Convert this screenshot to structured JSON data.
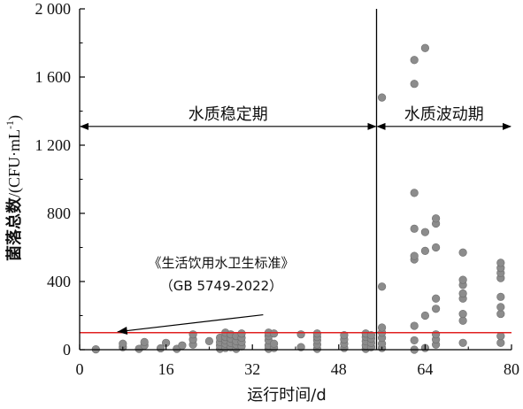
{
  "chart_data": {
    "type": "scatter",
    "xlabel": "运行时间/d",
    "ylabel": {
      "cjk": "菌落总数",
      "unit": "/(CFU·mL",
      "exp": "-1",
      "close": ")"
    },
    "xlim": [
      0,
      80
    ],
    "ylim": [
      0,
      2000
    ],
    "xticks": [
      0,
      16,
      32,
      48,
      64,
      80
    ],
    "yticks": [
      0,
      400,
      800,
      1200,
      1600,
      2000
    ],
    "xtick_labels": [
      "0",
      "16",
      "32",
      "48",
      "64",
      "80"
    ],
    "ytick_labels": [
      "0",
      "400",
      "800",
      "1 200",
      "1 600",
      "2 000"
    ],
    "grid": false,
    "standard_line": {
      "y": 100,
      "color": "#e02020"
    },
    "divider_x": 55,
    "regions": [
      {
        "label": "水质稳定期",
        "x_from": 0,
        "x_to": 55,
        "y": 1310
      },
      {
        "label": "水质波动期",
        "x_from": 55,
        "x_to": 80,
        "y": 1310
      }
    ],
    "annotation": {
      "line1": "《生活饮用水卫生标准》",
      "line2": "（GB 5749-2022）",
      "arrow_from": [
        12,
        210
      ],
      "arrow_to": [
        7,
        105
      ]
    },
    "point_color": "#8c8c8c",
    "points": [
      [
        3,
        2
      ],
      [
        8,
        15
      ],
      [
        8,
        35
      ],
      [
        11,
        5
      ],
      [
        12,
        25
      ],
      [
        12,
        45
      ],
      [
        15,
        8
      ],
      [
        16,
        40
      ],
      [
        18,
        5
      ],
      [
        19,
        25
      ],
      [
        21,
        30
      ],
      [
        21,
        60
      ],
      [
        21,
        90
      ],
      [
        24,
        50
      ],
      [
        26,
        5
      ],
      [
        26,
        25
      ],
      [
        26,
        45
      ],
      [
        26,
        70
      ],
      [
        27,
        10
      ],
      [
        27,
        35
      ],
      [
        27,
        55
      ],
      [
        27,
        75
      ],
      [
        27,
        100
      ],
      [
        28,
        15
      ],
      [
        28,
        40
      ],
      [
        28,
        65
      ],
      [
        28,
        90
      ],
      [
        29,
        5
      ],
      [
        29,
        30
      ],
      [
        29,
        50
      ],
      [
        29,
        80
      ],
      [
        30,
        20
      ],
      [
        30,
        45
      ],
      [
        30,
        70
      ],
      [
        30,
        95
      ],
      [
        35,
        5
      ],
      [
        35,
        25
      ],
      [
        35,
        55
      ],
      [
        35,
        80
      ],
      [
        35,
        100
      ],
      [
        36,
        10
      ],
      [
        36,
        35
      ],
      [
        36,
        95
      ],
      [
        41,
        15
      ],
      [
        41,
        90
      ],
      [
        44,
        5
      ],
      [
        44,
        30
      ],
      [
        44,
        55
      ],
      [
        44,
        75
      ],
      [
        44,
        95
      ],
      [
        49,
        10
      ],
      [
        49,
        35
      ],
      [
        49,
        60
      ],
      [
        49,
        85
      ],
      [
        53,
        5
      ],
      [
        53,
        25
      ],
      [
        53,
        50
      ],
      [
        53,
        75
      ],
      [
        53,
        95
      ],
      [
        54,
        15
      ],
      [
        54,
        40
      ],
      [
        54,
        65
      ],
      [
        54,
        85
      ],
      [
        56,
        10
      ],
      [
        56,
        35
      ],
      [
        56,
        70
      ],
      [
        56,
        100
      ],
      [
        56,
        130
      ],
      [
        56,
        370
      ],
      [
        56,
        1480
      ],
      [
        62,
        0
      ],
      [
        62,
        55
      ],
      [
        62,
        140
      ],
      [
        62,
        530
      ],
      [
        62,
        550
      ],
      [
        62,
        710
      ],
      [
        62,
        920
      ],
      [
        62,
        1560
      ],
      [
        62,
        1700
      ],
      [
        64,
        10
      ],
      [
        64,
        200
      ],
      [
        64,
        580
      ],
      [
        64,
        690
      ],
      [
        64,
        1770
      ],
      [
        66,
        30
      ],
      [
        66,
        60
      ],
      [
        66,
        90
      ],
      [
        66,
        240
      ],
      [
        66,
        300
      ],
      [
        66,
        600
      ],
      [
        66,
        740
      ],
      [
        66,
        770
      ],
      [
        71,
        40
      ],
      [
        71,
        170
      ],
      [
        71,
        210
      ],
      [
        71,
        300
      ],
      [
        71,
        330
      ],
      [
        71,
        380
      ],
      [
        71,
        410
      ],
      [
        71,
        570
      ],
      [
        78,
        40
      ],
      [
        78,
        80
      ],
      [
        78,
        210
      ],
      [
        78,
        250
      ],
      [
        78,
        310
      ],
      [
        78,
        420
      ],
      [
        78,
        450
      ],
      [
        78,
        480
      ],
      [
        78,
        510
      ]
    ]
  }
}
